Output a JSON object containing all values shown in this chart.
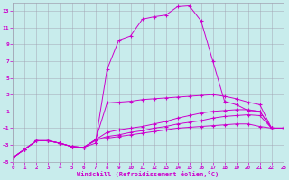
{
  "xlabel": "Windchill (Refroidissement éolien,°C)",
  "xlim": [
    0,
    23
  ],
  "ylim": [
    -5,
    14
  ],
  "yticks": [
    -5,
    -3,
    -1,
    1,
    3,
    5,
    7,
    9,
    11,
    13
  ],
  "xticks": [
    0,
    1,
    2,
    3,
    4,
    5,
    6,
    7,
    8,
    9,
    10,
    11,
    12,
    13,
    14,
    15,
    16,
    17,
    18,
    19,
    20,
    21,
    22,
    23
  ],
  "bg_color": "#c8ecec",
  "line_color": "#cc00cc",
  "grid_color": "#a0a0b0",
  "curves": [
    {
      "x": [
        0,
        1,
        2,
        3,
        4,
        5,
        6,
        7,
        8,
        9,
        10,
        11,
        12,
        13,
        14,
        15,
        16,
        17,
        18,
        19,
        20,
        21,
        22,
        23
      ],
      "y": [
        -4.5,
        -3.5,
        -2.5,
        -2.5,
        -2.8,
        -3.2,
        -3.3,
        -2.8,
        6.0,
        9.5,
        10.0,
        12.0,
        12.3,
        12.5,
        13.5,
        13.6,
        11.8,
        7.0,
        2.2,
        1.8,
        1.1,
        1.0,
        -1.0,
        -1.0
      ]
    },
    {
      "x": [
        0,
        1,
        2,
        3,
        4,
        5,
        6,
        7,
        8,
        9,
        10,
        11,
        12,
        13,
        14,
        15,
        16,
        17,
        18,
        19,
        20,
        21,
        22,
        23
      ],
      "y": [
        -4.5,
        -3.5,
        -2.5,
        -2.5,
        -2.8,
        -3.2,
        -3.3,
        -2.5,
        2.0,
        2.1,
        2.2,
        2.4,
        2.5,
        2.6,
        2.7,
        2.8,
        2.9,
        3.0,
        2.8,
        2.5,
        2.1,
        1.8,
        -1.0,
        -1.0
      ]
    },
    {
      "x": [
        0,
        1,
        2,
        3,
        4,
        5,
        6,
        7,
        8,
        9,
        10,
        11,
        12,
        13,
        14,
        15,
        16,
        17,
        18,
        19,
        20,
        21,
        22,
        23
      ],
      "y": [
        -4.5,
        -3.5,
        -2.5,
        -2.5,
        -2.8,
        -3.2,
        -3.3,
        -2.4,
        -1.5,
        -1.2,
        -1.0,
        -0.8,
        -0.5,
        -0.2,
        0.2,
        0.5,
        0.8,
        1.0,
        1.1,
        1.2,
        1.2,
        1.0,
        -1.0,
        -1.0
      ]
    },
    {
      "x": [
        0,
        1,
        2,
        3,
        4,
        5,
        6,
        7,
        8,
        9,
        10,
        11,
        12,
        13,
        14,
        15,
        16,
        17,
        18,
        19,
        20,
        21,
        22,
        23
      ],
      "y": [
        -4.5,
        -3.5,
        -2.5,
        -2.5,
        -2.8,
        -3.2,
        -3.3,
        -2.4,
        -2.0,
        -1.8,
        -1.5,
        -1.3,
        -1.0,
        -0.8,
        -0.5,
        -0.3,
        -0.1,
        0.2,
        0.4,
        0.5,
        0.6,
        0.5,
        -1.0,
        -1.0
      ]
    },
    {
      "x": [
        0,
        1,
        2,
        3,
        4,
        5,
        6,
        7,
        8,
        9,
        10,
        11,
        12,
        13,
        14,
        15,
        16,
        17,
        18,
        19,
        20,
        21,
        22,
        23
      ],
      "y": [
        -4.5,
        -3.5,
        -2.5,
        -2.5,
        -2.8,
        -3.2,
        -3.3,
        -2.4,
        -2.2,
        -2.0,
        -1.8,
        -1.6,
        -1.4,
        -1.2,
        -1.0,
        -0.9,
        -0.8,
        -0.7,
        -0.6,
        -0.5,
        -0.5,
        -0.8,
        -1.0,
        -1.0
      ]
    }
  ]
}
